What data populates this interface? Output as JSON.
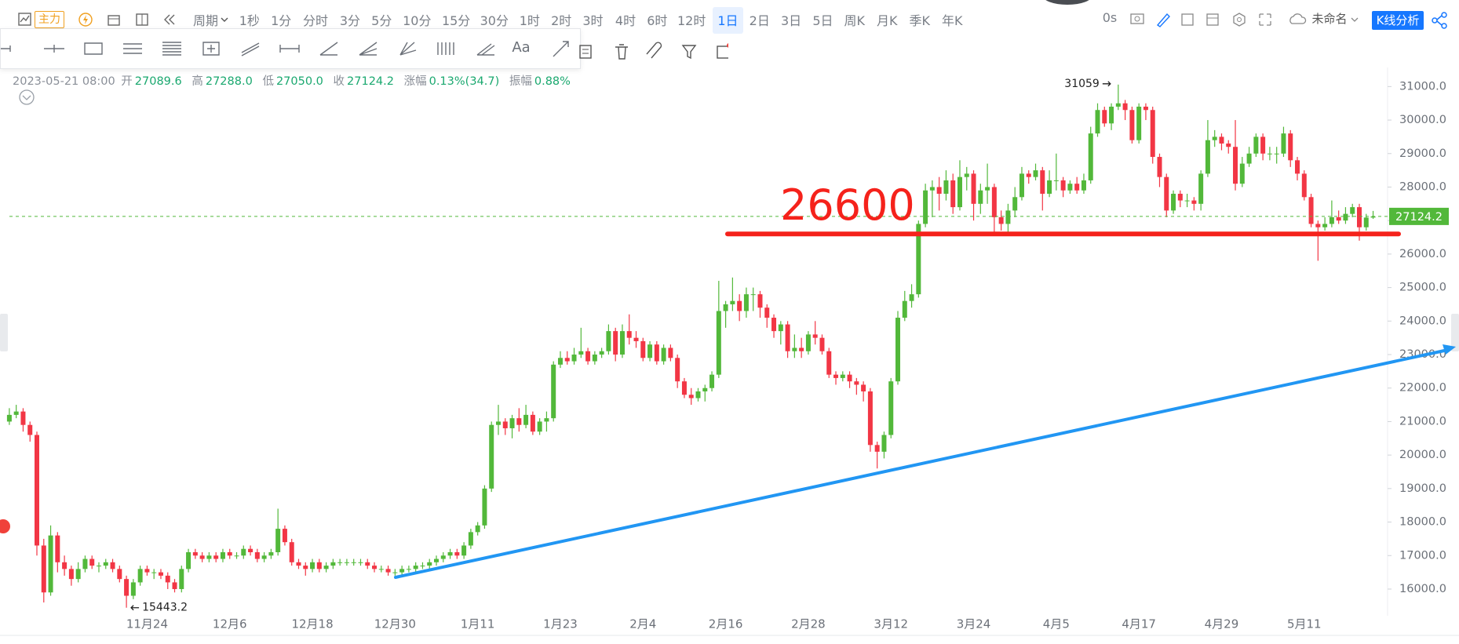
{
  "toolbar": {
    "main": "主力",
    "period": "周期",
    "intervals": [
      "1秒",
      "1分",
      "分时",
      "3分",
      "5分",
      "10分",
      "15分",
      "30分",
      "1时",
      "2时",
      "3时",
      "4时",
      "6时",
      "12时",
      "1日",
      "2日",
      "3日",
      "5日",
      "周K",
      "月K",
      "季K",
      "年K"
    ],
    "active_interval": 14,
    "timer": "0s",
    "layout_name": "未命名",
    "analysis_button": "K线分析",
    "text_tool": "Aa"
  },
  "chart_data": {
    "type": "candlestick",
    "info": {
      "datetime": "2023-05-21 08:00",
      "open_label": "开",
      "open": "27089.6",
      "high_label": "高",
      "high": "27288.0",
      "low_label": "低",
      "low": "27050.0",
      "close_label": "收",
      "close": "27124.2",
      "change_label": "涨幅",
      "change": "0.13%(34.7)",
      "amplitude_label": "振幅",
      "amplitude": "0.88%"
    },
    "support_level": 26600,
    "up_color": "#52b83a",
    "down_color": "#f23645",
    "support_color": "#f5221b",
    "trend_color": "#2196f3",
    "categories": [
      null,
      null,
      null,
      null,
      null,
      null,
      null,
      null,
      null,
      null,
      null,
      null,
      null,
      null,
      null,
      null,
      null,
      null,
      null,
      null,
      "11月24",
      null,
      null,
      null,
      null,
      null,
      null,
      null,
      null,
      null,
      null,
      null,
      "12月6",
      null,
      null,
      null,
      null,
      null,
      null,
      null,
      null,
      null,
      null,
      null,
      "12月18",
      null,
      null,
      null,
      null,
      null,
      null,
      null,
      null,
      null,
      null,
      null,
      "12月30",
      null,
      null,
      null,
      null,
      null,
      null,
      null,
      null,
      null,
      null,
      null,
      "1月11",
      null,
      null,
      null,
      null,
      null,
      null,
      null,
      null,
      null,
      null,
      null,
      "1月23",
      null,
      null,
      null,
      null,
      null,
      null,
      null,
      null,
      null,
      null,
      null,
      "2月4",
      null,
      null,
      null,
      null,
      null,
      null,
      null,
      null,
      null,
      null,
      null,
      "2月16",
      null,
      null,
      null,
      null,
      null,
      null,
      null,
      null,
      null,
      null,
      null,
      "2月28",
      null,
      null,
      null,
      null,
      null,
      null,
      null,
      null,
      null,
      null,
      null,
      "3月12",
      null,
      null,
      null,
      null,
      null,
      null,
      null,
      null,
      null,
      null,
      null,
      "3月24",
      null,
      null,
      null,
      null,
      null,
      null,
      null,
      null,
      null,
      null,
      null,
      "4月5",
      null,
      null,
      null,
      null,
      null,
      null,
      null,
      null,
      null,
      null,
      null,
      "4月17",
      null,
      null,
      null,
      null,
      null,
      null,
      null,
      null,
      null,
      null,
      null,
      "4月29",
      null,
      null,
      null,
      null,
      null,
      null,
      null,
      null,
      null,
      null,
      null,
      "5月11",
      null,
      null,
      null,
      null,
      null,
      null,
      null,
      null,
      null,
      null
    ],
    "open": [
      21000,
      21200,
      21300,
      20900,
      20600,
      17300,
      15900,
      17600,
      16800,
      16600,
      16300,
      16600,
      16900,
      16700,
      16700,
      16800,
      16600,
      16300,
      15800,
      16200,
      16600,
      16500,
      16500,
      16400,
      16200,
      16000,
      16600,
      17100,
      17000,
      16900,
      17000,
      16900,
      17100,
      17000,
      17000,
      17200,
      17100,
      16900,
      17000,
      17100,
      17800,
      17400,
      16800,
      16700,
      16600,
      16800,
      16600,
      16700,
      16800,
      16800,
      16800,
      16800,
      16800,
      16700,
      16600,
      16600,
      16500,
      16500,
      16600,
      16600,
      16700,
      16700,
      16800,
      16900,
      17000,
      17100,
      17000,
      17300,
      17700,
      17900,
      19000,
      20900,
      21000,
      20800,
      21100,
      20900,
      21200,
      20700,
      21000,
      21100,
      22700,
      22900,
      22800,
      23000,
      23100,
      22800,
      23000,
      23100,
      23700,
      23000,
      23700,
      23500,
      23400,
      22900,
      23300,
      22800,
      23200,
      22900,
      22200,
      21800,
      21700,
      21900,
      22000,
      22400,
      24300,
      24500,
      24600,
      24300,
      24800,
      24800,
      24400,
      24100,
      23700,
      23900,
      23100,
      23200,
      23100,
      23600,
      23500,
      23100,
      22400,
      22300,
      22400,
      22200,
      22100,
      21900,
      20300,
      20100,
      20600,
      22200,
      24100,
      24600,
      24800,
      26900,
      27900,
      28000,
      27800,
      28200,
      27400,
      28300,
      28400,
      27500,
      27900,
      28000,
      27100,
      26900,
      27300,
      27700,
      28400,
      28300,
      28500,
      27800,
      28200,
      28200,
      27900,
      28100,
      27900,
      28200,
      29600,
      30300,
      29900,
      30400,
      30500,
      30300,
      29400,
      30400,
      30300,
      28900,
      28300,
      27300,
      27800,
      27600,
      27600,
      27500,
      28400,
      29400,
      29500,
      29300,
      29200,
      28100,
      28700,
      29000,
      29500,
      29000,
      29000,
      29000,
      29600,
      28800,
      28400,
      27700,
      26900,
      26800,
      26900,
      27100,
      27000,
      27200,
      27400,
      26800,
      27089.6
    ],
    "high": [
      21400,
      21500,
      21400,
      21000,
      20700,
      17500,
      17900,
      17700,
      17000,
      16700,
      16800,
      17000,
      17000,
      16800,
      16900,
      16900,
      16700,
      16400,
      16300,
      16700,
      16700,
      16600,
      16600,
      16500,
      16300,
      16700,
      17200,
      17200,
      17100,
      17100,
      17100,
      17200,
      17200,
      17100,
      17300,
      17300,
      17200,
      17100,
      17200,
      18400,
      17900,
      17500,
      16900,
      16800,
      16900,
      16900,
      16800,
      16900,
      16900,
      16900,
      16900,
      16900,
      16900,
      16800,
      16700,
      16700,
      16600,
      16700,
      16700,
      16800,
      16800,
      16900,
      17000,
      17100,
      17200,
      17200,
      17400,
      17800,
      18000,
      19100,
      21000,
      21500,
      21100,
      21200,
      21400,
      21500,
      21300,
      21100,
      21300,
      22800,
      23100,
      23100,
      23200,
      23800,
      23200,
      23100,
      23200,
      23900,
      23800,
      23900,
      24200,
      23700,
      23500,
      23400,
      23400,
      23300,
      23300,
      23000,
      22300,
      22000,
      22000,
      22100,
      22500,
      25200,
      24600,
      25300,
      24800,
      25000,
      25000,
      24900,
      24500,
      24200,
      24000,
      24000,
      23600,
      23500,
      23700,
      24000,
      23600,
      23200,
      22500,
      22500,
      22500,
      22300,
      22200,
      22000,
      20400,
      20700,
      22300,
      24300,
      24900,
      25100,
      27000,
      28100,
      28200,
      28300,
      28500,
      28400,
      28800,
      28600,
      28500,
      28100,
      28700,
      28100,
      27300,
      27500,
      28000,
      28600,
      28500,
      28700,
      28600,
      28500,
      29000,
      28300,
      28200,
      28300,
      28400,
      29800,
      30500,
      30400,
      30500,
      31059,
      30600,
      30400,
      30500,
      30500,
      30400,
      29000,
      28400,
      27900,
      27900,
      27800,
      27700,
      28500,
      30000,
      29700,
      29600,
      29400,
      30000,
      28900,
      29200,
      29600,
      29600,
      29200,
      29200,
      29800,
      29700,
      28900,
      28500,
      27800,
      27000,
      27100,
      27600,
      27300,
      27400,
      27500,
      27500,
      27200,
      27288.0
    ],
    "low": [
      20900,
      21100,
      20700,
      20400,
      17000,
      15600,
      15800,
      16500,
      16400,
      16100,
      16200,
      16500,
      16600,
      16500,
      16600,
      16500,
      16200,
      15443.2,
      15700,
      16100,
      16400,
      16300,
      16300,
      16000,
      15900,
      15900,
      16500,
      16900,
      16800,
      16800,
      16800,
      16800,
      16900,
      16900,
      16900,
      17000,
      16800,
      16800,
      16900,
      17000,
      17300,
      16700,
      16600,
      16400,
      16500,
      16500,
      16500,
      16600,
      16700,
      16700,
      16700,
      16700,
      16600,
      16500,
      16500,
      16400,
      16400,
      16400,
      16500,
      16500,
      16600,
      16600,
      16700,
      16800,
      16900,
      16900,
      16900,
      17200,
      17600,
      17800,
      18900,
      20600,
      20600,
      20500,
      20700,
      20800,
      20600,
      20600,
      20700,
      21000,
      22600,
      22700,
      22700,
      22900,
      22700,
      22700,
      22900,
      23000,
      22800,
      22900,
      23300,
      23200,
      22800,
      22800,
      22700,
      22700,
      22800,
      22000,
      21700,
      21500,
      21600,
      21600,
      21900,
      22300,
      23800,
      24300,
      24000,
      24100,
      24300,
      24100,
      23800,
      23500,
      23300,
      22900,
      22900,
      22900,
      23000,
      23300,
      23000,
      22300,
      22100,
      22200,
      22000,
      21800,
      21600,
      20100,
      19600,
      19900,
      20500,
      22100,
      24000,
      24400,
      24700,
      26800,
      27100,
      27300,
      27600,
      27200,
      27300,
      27900,
      27000,
      27200,
      27500,
      26600,
      26700,
      26600,
      27100,
      27600,
      28100,
      28200,
      27300,
      27700,
      27900,
      27700,
      27800,
      27800,
      27800,
      28100,
      29500,
      29800,
      29700,
      30300,
      30000,
      29300,
      29300,
      30000,
      28700,
      28000,
      27100,
      27200,
      27400,
      27400,
      27300,
      27300,
      28300,
      29200,
      29100,
      29000,
      27900,
      28000,
      28600,
      28900,
      28800,
      28800,
      28700,
      28900,
      28600,
      28200,
      27600,
      26800,
      25800,
      26700,
      26800,
      26900,
      26900,
      27100,
      26400,
      26700,
      27050.0
    ],
    "close": [
      21200,
      21300,
      20900,
      20600,
      17300,
      15900,
      17600,
      16800,
      16600,
      16300,
      16600,
      16900,
      16700,
      16700,
      16800,
      16600,
      16300,
      15800,
      16200,
      16600,
      16500,
      16500,
      16400,
      16200,
      16000,
      16600,
      17100,
      17000,
      16900,
      17000,
      16900,
      17100,
      17000,
      17000,
      17200,
      17100,
      16900,
      17000,
      17100,
      17800,
      17400,
      16800,
      16700,
      16600,
      16800,
      16600,
      16700,
      16800,
      16800,
      16800,
      16800,
      16800,
      16700,
      16600,
      16600,
      16500,
      16500,
      16600,
      16600,
      16700,
      16700,
      16800,
      16900,
      17000,
      17100,
      17000,
      17300,
      17700,
      17900,
      19000,
      20900,
      21000,
      20800,
      21100,
      20900,
      21200,
      20700,
      21000,
      21100,
      22700,
      22900,
      22800,
      23000,
      23100,
      22800,
      23000,
      23100,
      23700,
      23000,
      23700,
      23500,
      23400,
      22900,
      23300,
      22800,
      23200,
      22900,
      22200,
      21800,
      21700,
      21900,
      22000,
      22400,
      24300,
      24500,
      24600,
      24300,
      24800,
      24800,
      24400,
      24100,
      23700,
      23900,
      23100,
      23200,
      23100,
      23600,
      23500,
      23100,
      22400,
      22300,
      22400,
      22200,
      22100,
      21900,
      20300,
      20100,
      20600,
      22200,
      24100,
      24600,
      24800,
      26900,
      27900,
      28000,
      27800,
      28200,
      27400,
      28300,
      28400,
      27500,
      27900,
      28000,
      27100,
      26900,
      27300,
      27700,
      28400,
      28300,
      28500,
      27800,
      28200,
      28200,
      27900,
      28100,
      27900,
      28200,
      29600,
      30300,
      29900,
      30400,
      30500,
      30300,
      29400,
      30400,
      30300,
      28900,
      28300,
      27300,
      27800,
      27600,
      27600,
      27500,
      28400,
      29400,
      29500,
      29300,
      29200,
      28100,
      28700,
      29000,
      29500,
      29000,
      29000,
      29000,
      29600,
      28800,
      28400,
      27700,
      26900,
      26800,
      26900,
      27100,
      27000,
      27200,
      27400,
      26800,
      27090,
      27124.2
    ],
    "ylim": [
      15250,
      31500
    ],
    "yticks": [
      {
        "value": 16000,
        "label": "16000.0"
      },
      {
        "value": 17000,
        "label": "17000.0"
      },
      {
        "value": 18000,
        "label": "18000.0"
      },
      {
        "value": 19000,
        "label": "19000.0"
      },
      {
        "value": 20000,
        "label": "20000.0"
      },
      {
        "value": 21000,
        "label": "21000.0"
      },
      {
        "value": 22000,
        "label": "22000.0"
      },
      {
        "value": 23000,
        "label": "23000.0"
      },
      {
        "value": 24000,
        "label": "24000.0"
      },
      {
        "value": 25000,
        "label": "25000.0"
      },
      {
        "value": 26000,
        "label": "26000.0"
      },
      {
        "value": 27000,
        "label": "27000.0"
      },
      {
        "value": 28000,
        "label": "28000.0"
      },
      {
        "value": 29000,
        "label": "29000.0"
      },
      {
        "value": 30000,
        "label": "30000.0"
      },
      {
        "value": 31000,
        "label": "31000.0"
      }
    ],
    "grid": false
  }
}
